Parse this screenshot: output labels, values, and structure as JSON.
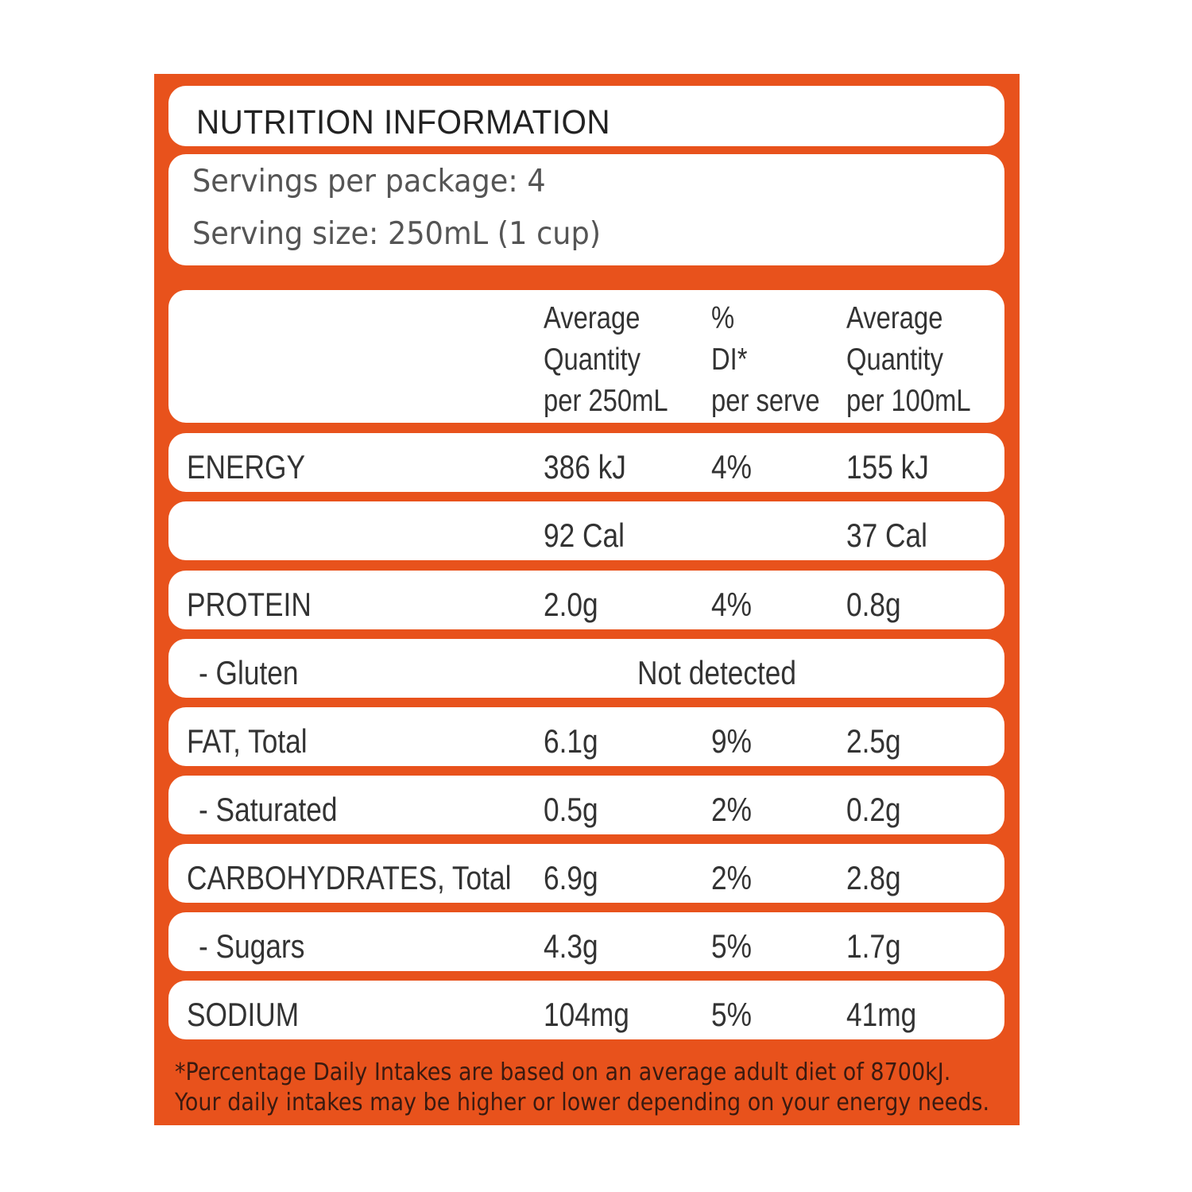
{
  "label": {
    "title": "NUTRITION INFORMATION",
    "servings_per_package": "Servings per package: 4",
    "serving_size": "Serving size: 250mL (1 cup)",
    "columns": {
      "per_serve": [
        "Average",
        "Quantity",
        "per 250mL"
      ],
      "di": [
        "%",
        "DI*",
        "per serve"
      ],
      "per_100": [
        "Average",
        "Quantity",
        "per 100mL"
      ]
    },
    "rows": [
      {
        "label": "ENERGY",
        "a": "386 kJ",
        "b": "4%",
        "c": "155 kJ"
      },
      {
        "label": "",
        "a": "92 Cal",
        "b": "",
        "c": "37 Cal"
      },
      {
        "label": "PROTEIN",
        "a": "2.0g",
        "b": "4%",
        "c": "0.8g"
      },
      {
        "label": "- Gluten",
        "span": "Not detected"
      },
      {
        "label": "FAT, Total",
        "a": "6.1g",
        "b": "9%",
        "c": "2.5g"
      },
      {
        "label": "- Saturated",
        "a": "0.5g",
        "b": "2%",
        "c": "0.2g"
      },
      {
        "label": "CARBOHYDRATES, Total",
        "a": "6.9g",
        "b": "2%",
        "c": "2.8g"
      },
      {
        "label": "- Sugars",
        "a": "4.3g",
        "b": "5%",
        "c": "1.7g"
      },
      {
        "label": "SODIUM",
        "a": "104mg",
        "b": "5%",
        "c": "41mg"
      }
    ],
    "footnote": [
      "*Percentage Daily Intakes are based on an average adult diet of 8700kJ.",
      "Your daily intakes may be higher or lower depending on your energy needs."
    ],
    "colors": {
      "panel": "#e8521c",
      "box": "#ffffff"
    }
  }
}
